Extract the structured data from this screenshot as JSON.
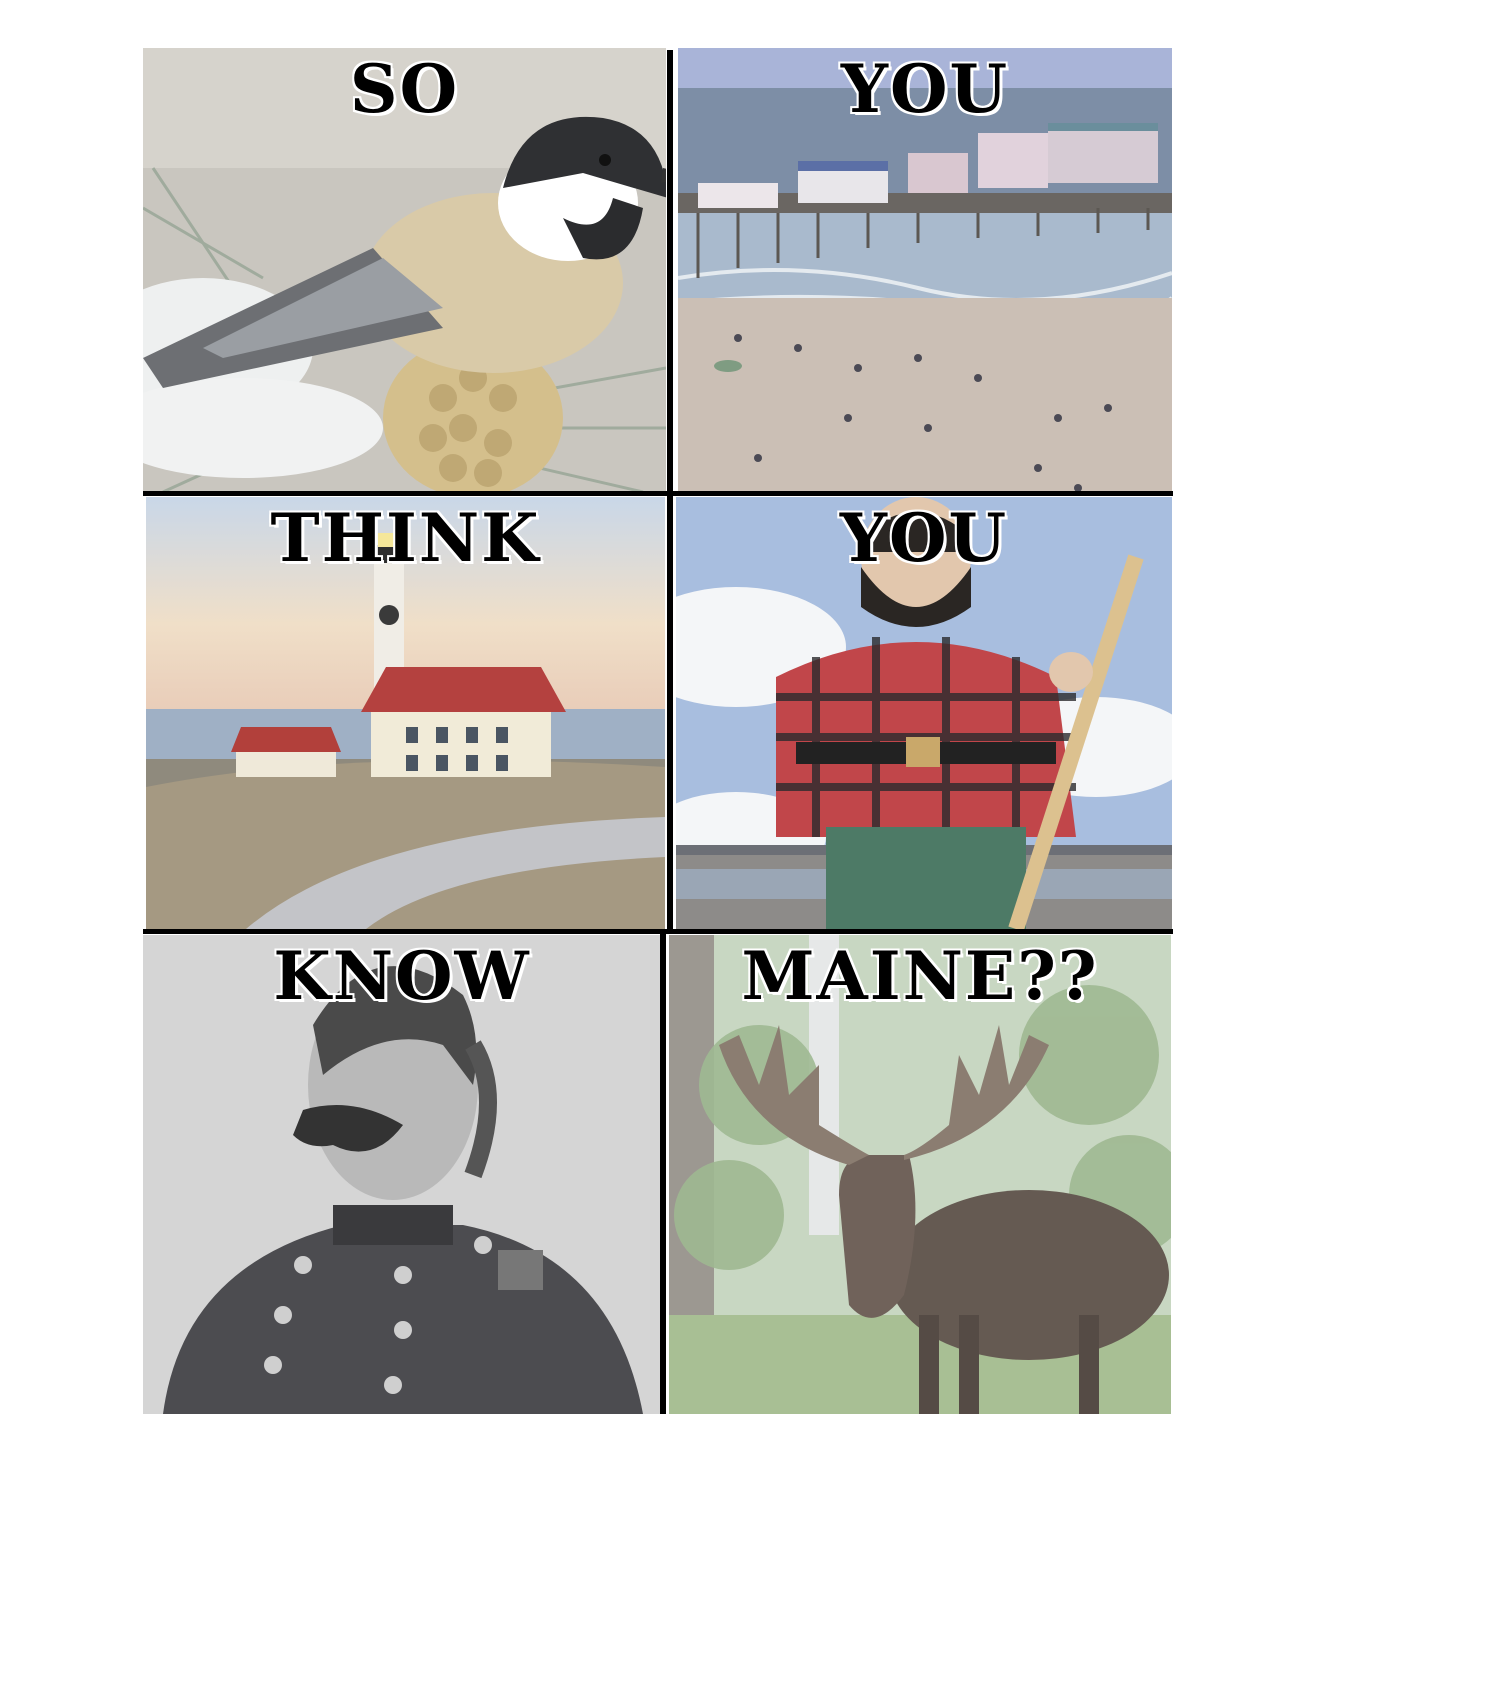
{
  "panels": [
    {
      "caption": "SO",
      "picture": "chickadee-on-pine-cone"
    },
    {
      "caption": "YOU",
      "picture": "beach-pier"
    },
    {
      "caption": "THINK",
      "picture": "lighthouse"
    },
    {
      "caption": "YOU",
      "picture": "lumberjack-statue"
    },
    {
      "caption": "KNOW",
      "picture": "civil-war-general-portrait"
    },
    {
      "caption": "MAINE??",
      "picture": "moose-in-forest"
    }
  ]
}
